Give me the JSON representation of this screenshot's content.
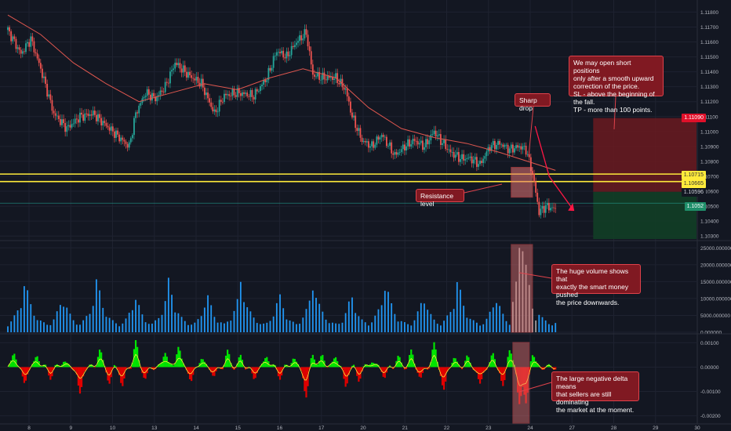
{
  "colors": {
    "background": "#131722",
    "grid": "#1e2230",
    "bull": "#26a69a",
    "bear": "#ef5350",
    "volume": "#2196f3",
    "ma": "#e0574f",
    "resistance": "#ffeb3b",
    "annotation_bg": "#801922",
    "annotation_border": "#e0424b",
    "delta_pos": "#00e600",
    "delta_neg": "#e10000",
    "delta_line": "#ffeb3b"
  },
  "annotations": {
    "sharp_drop": "Sharp drop",
    "resistance_level": "Resistance level",
    "short_positions": "We may open short positions\nonly after a smooth upward\ncorrection of the price.\nSL - above the beginning of the fall.\nTP - more than 100 points.",
    "huge_volume": "The huge volume shows that\nexactly the smart money pushed\nthe price downwards.",
    "negative_delta": "The large negative delta means\nthat sellers are still dominating\nthe market at the moment."
  },
  "price_tags": {
    "stop_loss": "1.11090",
    "resistance_high": "1.10715",
    "resistance_low": "1.10665",
    "entry": "1.10596",
    "current": "1.1052"
  },
  "chart_data": [
    {
      "type": "candlestick",
      "panel": "price",
      "y_ticks": [
        "1.11800",
        "1.11700",
        "1.11600",
        "1.11500",
        "1.11400",
        "1.11300",
        "1.11200",
        "1.11100",
        "1.11000",
        "1.10900",
        "1.10800",
        "1.10700",
        "1.10600",
        "1.10500",
        "1.10400",
        "1.10300"
      ],
      "ylim": [
        1.1028,
        1.1186
      ],
      "x_ticks": [
        "8",
        "9",
        "10",
        "13",
        "14",
        "15",
        "16",
        "17",
        "20",
        "21",
        "22",
        "23",
        "24",
        "27",
        "28",
        "29",
        "30"
      ],
      "x_range": [
        0,
        420
      ],
      "close_path": [
        [
          0,
          1.1168
        ],
        [
          8,
          1.1152
        ],
        [
          14,
          1.1162
        ],
        [
          20,
          1.1142
        ],
        [
          28,
          1.1112
        ],
        [
          36,
          1.1102
        ],
        [
          44,
          1.111
        ],
        [
          52,
          1.1112
        ],
        [
          60,
          1.1104
        ],
        [
          68,
          1.1096
        ],
        [
          74,
          1.109
        ],
        [
          78,
          1.1112
        ],
        [
          84,
          1.1126
        ],
        [
          90,
          1.1122
        ],
        [
          96,
          1.113
        ],
        [
          102,
          1.1146
        ],
        [
          110,
          1.1138
        ],
        [
          118,
          1.1132
        ],
        [
          126,
          1.1112
        ],
        [
          132,
          1.1124
        ],
        [
          140,
          1.1126
        ],
        [
          150,
          1.1124
        ],
        [
          158,
          1.1136
        ],
        [
          164,
          1.1154
        ],
        [
          170,
          1.115
        ],
        [
          176,
          1.116
        ],
        [
          182,
          1.1166
        ],
        [
          186,
          1.1138
        ],
        [
          192,
          1.1136
        ],
        [
          200,
          1.1136
        ],
        [
          206,
          1.1128
        ],
        [
          210,
          1.111
        ],
        [
          216,
          1.1094
        ],
        [
          222,
          1.109
        ],
        [
          228,
          1.1098
        ],
        [
          236,
          1.1084
        ],
        [
          242,
          1.109
        ],
        [
          248,
          1.1094
        ],
        [
          254,
          1.109
        ],
        [
          260,
          1.11
        ],
        [
          264,
          1.1094
        ],
        [
          270,
          1.1086
        ],
        [
          276,
          1.1082
        ],
        [
          282,
          1.1082
        ],
        [
          288,
          1.1078
        ],
        [
          294,
          1.109
        ],
        [
          300,
          1.1092
        ],
        [
          306,
          1.1088
        ],
        [
          312,
          1.109
        ],
        [
          316,
          1.1088
        ],
        [
          320,
          1.1072
        ],
        [
          324,
          1.1046
        ],
        [
          328,
          1.105
        ],
        [
          334,
          1.1048
        ]
      ],
      "moving_average": [
        [
          0,
          1.1178
        ],
        [
          20,
          1.1165
        ],
        [
          40,
          1.1146
        ],
        [
          60,
          1.1132
        ],
        [
          80,
          1.112
        ],
        [
          100,
          1.1126
        ],
        [
          120,
          1.1132
        ],
        [
          140,
          1.1128
        ],
        [
          160,
          1.1136
        ],
        [
          180,
          1.1142
        ],
        [
          200,
          1.1136
        ],
        [
          220,
          1.1116
        ],
        [
          240,
          1.1102
        ],
        [
          260,
          1.1096
        ],
        [
          280,
          1.1092
        ],
        [
          300,
          1.1086
        ],
        [
          320,
          1.1079
        ],
        [
          334,
          1.1074
        ]
      ],
      "resistance_levels": [
        1.10715,
        1.10665
      ],
      "entry_level": 1.10596,
      "stop_loss_level": 1.1109,
      "current_price": 1.1052,
      "short_position": {
        "x_start": 357,
        "x_end": 420,
        "entry": 1.10596,
        "stop": 1.1109,
        "target": 1.1028
      }
    },
    {
      "type": "bar",
      "panel": "volume",
      "y_ticks": [
        "25000.000000",
        "20000.000000",
        "15000.000000",
        "10000.000000",
        "5000.000000",
        "0.000000"
      ],
      "ylim": [
        0,
        26000
      ],
      "base_pattern": [
        2200,
        3000,
        4200,
        5800,
        8200,
        13500,
        10500,
        7200,
        5200,
        3800,
        3000,
        2500,
        2200,
        2400,
        3400,
        5200,
        7600,
        9400,
        6800,
        4600,
        3200,
        2600
      ],
      "highlight": [
        [
          308,
          9000
        ],
        [
          310,
          15000
        ],
        [
          312,
          25000
        ],
        [
          314,
          24000
        ],
        [
          316,
          20000
        ],
        [
          318,
          14000
        ],
        [
          320,
          7000
        ],
        [
          322,
          3500
        ]
      ]
    },
    {
      "type": "area",
      "panel": "delta",
      "y_ticks": [
        "0.00100",
        "0.00000",
        "-0.00100",
        "-0.00200"
      ],
      "ylim": [
        -0.0023,
        0.0013
      ],
      "spikes": [
        [
          4,
          0.0006
        ],
        [
          10,
          -0.0007
        ],
        [
          18,
          0.0005
        ],
        [
          26,
          -0.0004
        ],
        [
          34,
          0.0003
        ],
        [
          44,
          -0.0012
        ],
        [
          56,
          0.0007
        ],
        [
          62,
          -0.0006
        ],
        [
          70,
          -0.0008
        ],
        [
          78,
          0.001
        ],
        [
          84,
          -0.0005
        ],
        [
          96,
          0.0007
        ],
        [
          104,
          0.0009
        ],
        [
          112,
          -0.0006
        ],
        [
          118,
          0.0004
        ],
        [
          126,
          -0.0004
        ],
        [
          134,
          0.0006
        ],
        [
          142,
          0.0004
        ],
        [
          150,
          -0.0005
        ],
        [
          158,
          0.0005
        ],
        [
          166,
          -0.0004
        ],
        [
          174,
          0.0004
        ],
        [
          182,
          -0.0013
        ],
        [
          186,
          0.0006
        ],
        [
          192,
          0.0005
        ],
        [
          200,
          0.0005
        ],
        [
          206,
          -0.0008
        ],
        [
          214,
          -0.0005
        ],
        [
          222,
          0.0003
        ],
        [
          230,
          -0.0004
        ],
        [
          238,
          0.0004
        ],
        [
          246,
          0.0006
        ],
        [
          252,
          -0.0005
        ],
        [
          260,
          0.0009
        ],
        [
          266,
          -0.001
        ],
        [
          272,
          0.0004
        ],
        [
          280,
          0.0004
        ],
        [
          288,
          -0.0008
        ],
        [
          296,
          0.0005
        ],
        [
          302,
          -0.0009
        ],
        [
          306,
          0.0008
        ],
        [
          312,
          -0.0014
        ],
        [
          316,
          -0.0016
        ],
        [
          320,
          0.0006
        ]
      ]
    }
  ]
}
